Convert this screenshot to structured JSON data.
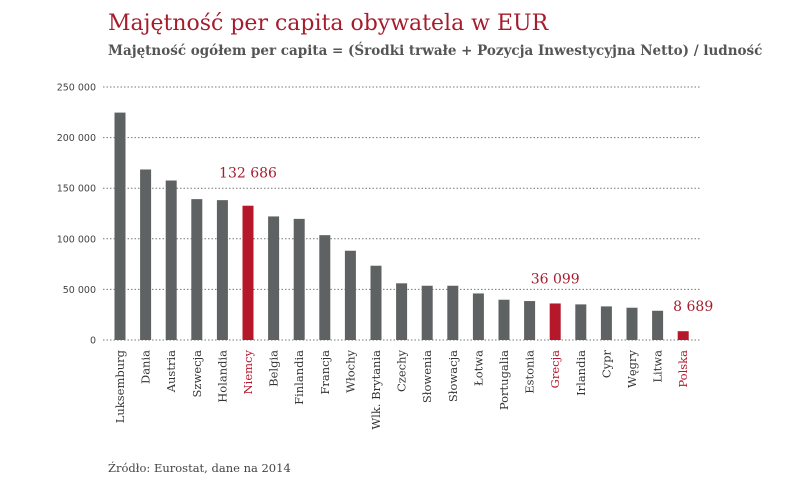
{
  "chart_data": {
    "type": "bar",
    "title": "Majętność per capita obywatela w EUR",
    "subtitle": "Majętność ogółem per capita = (Środki trwałe + Pozycja Inwestycyjna Netto) / ludność",
    "source": "Źródło: Eurostat, dane na 2014",
    "xlabel": "",
    "ylabel": "",
    "ylim": [
      0,
      250000
    ],
    "yticks": [
      0,
      50000,
      100000,
      150000,
      200000,
      250000
    ],
    "ytick_labels": [
      "0",
      "50 000",
      "100 000",
      "150 000",
      "200 000",
      "250 000"
    ],
    "grid": true,
    "categories": [
      "Luksemburg",
      "Dania",
      "Austria",
      "Szwecja",
      "Holandia",
      "Niemcy",
      "Belgia",
      "Finlandia",
      "Francja",
      "Włochy",
      "Wlk. Brytania",
      "Czechy",
      "Słowenia",
      "Słowacja",
      "Łotwa",
      "Portugalia",
      "Estonia",
      "Grecja",
      "Irlandia",
      "Cypr",
      "Węgry",
      "Litwa",
      "Polska"
    ],
    "values": [
      224700,
      168500,
      157600,
      139200,
      138200,
      132686,
      122100,
      119700,
      103600,
      88200,
      73400,
      56000,
      53600,
      53600,
      46000,
      39800,
      38500,
      36099,
      35200,
      33200,
      31900,
      28900,
      8689
    ],
    "highlighted": [
      "Niemcy",
      "Grecja",
      "Polska"
    ],
    "data_labels": [
      {
        "category": "Niemcy",
        "text": "132 686"
      },
      {
        "category": "Grecja",
        "text": "36 099"
      },
      {
        "category": "Polska",
        "text": "8 689"
      }
    ],
    "colors": {
      "bar": "#5f6263",
      "highlight": "#b5172b",
      "title": "#a51d2d"
    }
  }
}
